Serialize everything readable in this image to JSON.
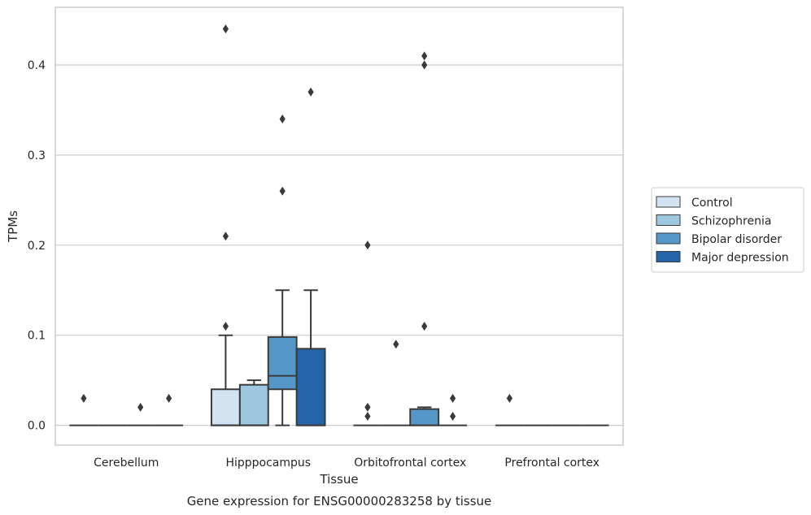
{
  "chart_data": {
    "type": "box",
    "xlabel": "Tissue",
    "ylabel": "TPMs",
    "caption": "Gene expression for ENSG00000283258 by tissue",
    "categories": [
      "Cerebellum",
      "Hipppocampus",
      "Orbitofrontal cortex",
      "Prefrontal cortex"
    ],
    "ylim": [
      -0.022,
      0.464
    ],
    "yticks": [
      0.0,
      0.1,
      0.2,
      0.3,
      0.4
    ],
    "ytick_labels": [
      "0.0",
      "0.1",
      "0.2",
      "0.3",
      "0.4"
    ],
    "grid": "horizontal",
    "legend_position": "right",
    "series": [
      {
        "name": "Control",
        "color": "#d3e3f2",
        "boxes": [
          {
            "q1": 0,
            "median": 0,
            "q3": 0,
            "whislo": 0,
            "whishi": 0,
            "fliers": [
              0.03
            ]
          },
          {
            "q1": 0,
            "median": 0,
            "q3": 0.04,
            "whislo": 0,
            "whishi": 0.1,
            "fliers": [
              0.11,
              0.21,
              0.44
            ]
          },
          {
            "q1": 0,
            "median": 0,
            "q3": 0,
            "whislo": 0,
            "whishi": 0,
            "fliers": [
              0.01,
              0.02,
              0.2
            ]
          },
          {
            "q1": 0,
            "median": 0,
            "q3": 0,
            "whislo": 0,
            "whishi": 0,
            "fliers": [
              0.03
            ]
          }
        ]
      },
      {
        "name": "Schizophrenia",
        "color": "#9ec8e0",
        "boxes": [
          {
            "q1": 0,
            "median": 0,
            "q3": 0,
            "whislo": 0,
            "whishi": 0,
            "fliers": []
          },
          {
            "q1": 0,
            "median": 0,
            "q3": 0.045,
            "whislo": 0,
            "whishi": 0.05,
            "fliers": []
          },
          {
            "q1": 0,
            "median": 0,
            "q3": 0,
            "whislo": 0,
            "whishi": 0,
            "fliers": [
              0.09
            ]
          },
          {
            "q1": 0,
            "median": 0,
            "q3": 0,
            "whislo": 0,
            "whishi": 0,
            "fliers": []
          }
        ]
      },
      {
        "name": "Bipolar disorder",
        "color": "#5597c8",
        "boxes": [
          {
            "q1": 0,
            "median": 0,
            "q3": 0,
            "whislo": 0,
            "whishi": 0,
            "fliers": [
              0.02
            ]
          },
          {
            "q1": 0.04,
            "median": 0.055,
            "q3": 0.098,
            "whislo": 0,
            "whishi": 0.15,
            "fliers": [
              0.26,
              0.34
            ]
          },
          {
            "q1": 0,
            "median": 0,
            "q3": 0.018,
            "whislo": 0,
            "whishi": 0.02,
            "fliers": [
              0.11,
              0.4,
              0.41
            ]
          },
          {
            "q1": 0,
            "median": 0,
            "q3": 0,
            "whislo": 0,
            "whishi": 0,
            "fliers": []
          }
        ]
      },
      {
        "name": "Major depression",
        "color": "#2464a8",
        "boxes": [
          {
            "q1": 0,
            "median": 0,
            "q3": 0,
            "whislo": 0,
            "whishi": 0,
            "fliers": [
              0.03
            ]
          },
          {
            "q1": 0,
            "median": 0,
            "q3": 0.085,
            "whislo": 0,
            "whishi": 0.15,
            "fliers": [
              0.37
            ]
          },
          {
            "q1": 0,
            "median": 0,
            "q3": 0,
            "whislo": 0,
            "whishi": 0,
            "fliers": [
              0.01,
              0.03
            ]
          },
          {
            "q1": 0,
            "median": 0,
            "q3": 0,
            "whislo": 0,
            "whishi": 0,
            "fliers": []
          }
        ]
      }
    ]
  }
}
